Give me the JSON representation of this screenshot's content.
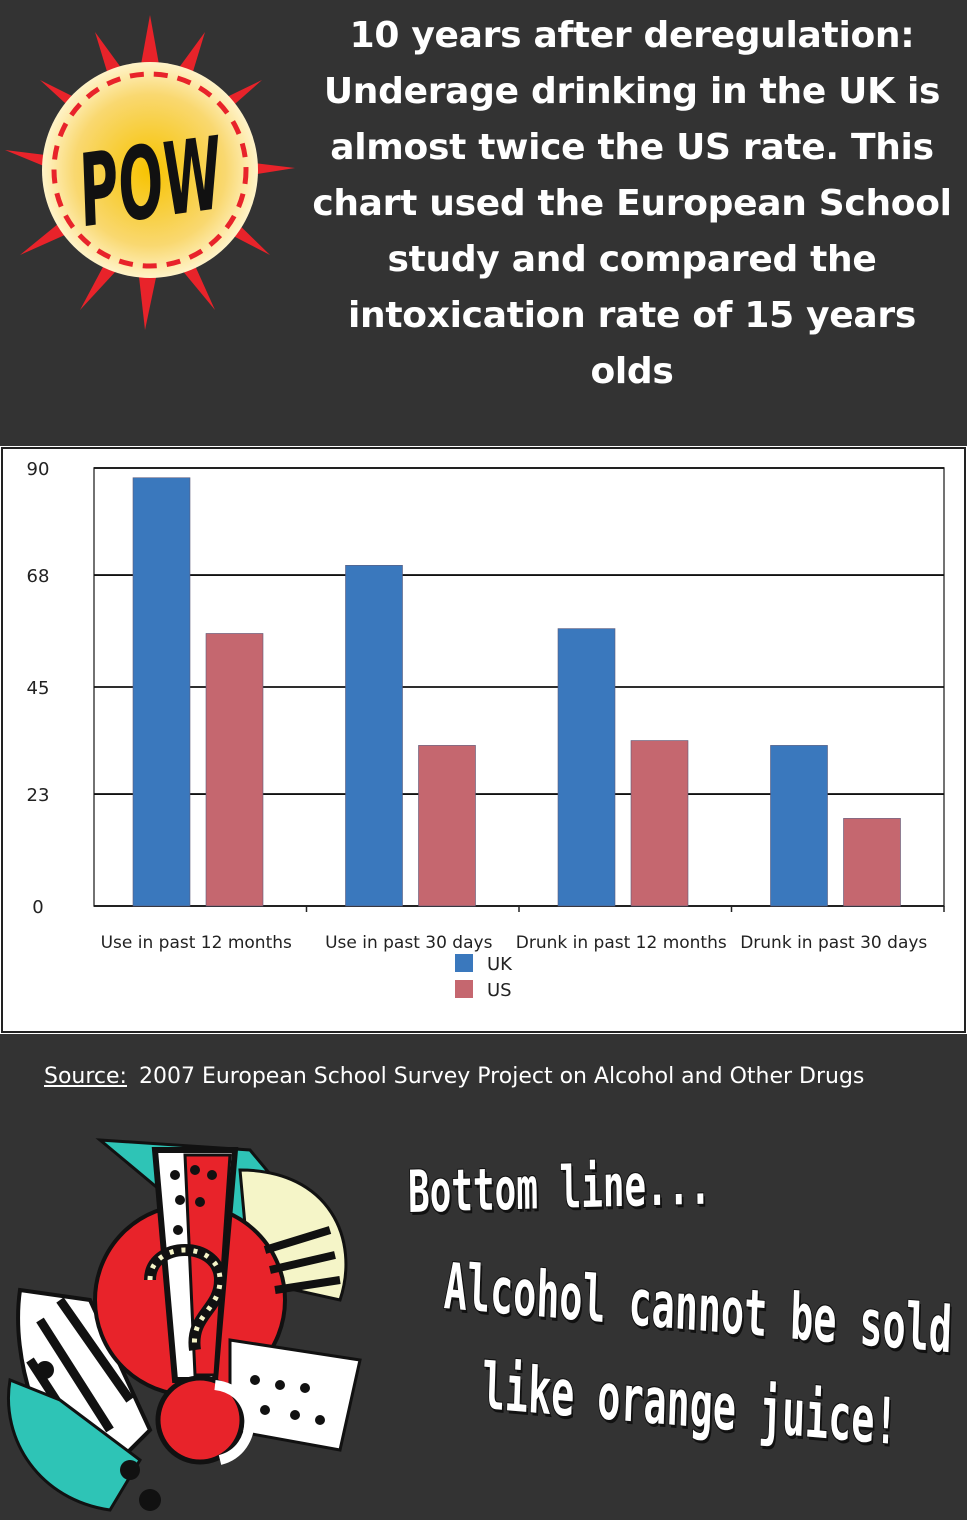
{
  "header": {
    "pow_text": "POW",
    "headline": "10 years after deregulation:\nUnderage drinking in the UK is\nalmost twice the US rate.  This\nchart used the European School\nstudy and compared the\nintoxication rate of 15 years olds"
  },
  "chart_data": {
    "type": "bar",
    "categories": [
      "Use in past 12 months",
      "Use in past 30 days",
      "Drunk in past 12 months",
      "Drunk in past 30 days"
    ],
    "series": [
      {
        "name": "UK",
        "color": "#3a78bd",
        "values": [
          88,
          70,
          57,
          33
        ]
      },
      {
        "name": "US",
        "color": "#c5676f",
        "values": [
          56,
          33,
          34,
          18
        ]
      }
    ],
    "y_ticks": [
      "0",
      "23",
      "45",
      "68",
      "90"
    ],
    "y_tick_values": [
      0,
      23,
      45,
      68,
      90
    ],
    "ylim": [
      0,
      90
    ],
    "grid": true,
    "legend_position": "bottom-center"
  },
  "source": {
    "label": "Source:",
    "text": "2007 European School Survey Project on Alcohol and Other Drugs"
  },
  "bottom": {
    "line1": "Bottom line...",
    "line2": "Alcohol cannot be sold",
    "line3": "like orange juice!"
  }
}
